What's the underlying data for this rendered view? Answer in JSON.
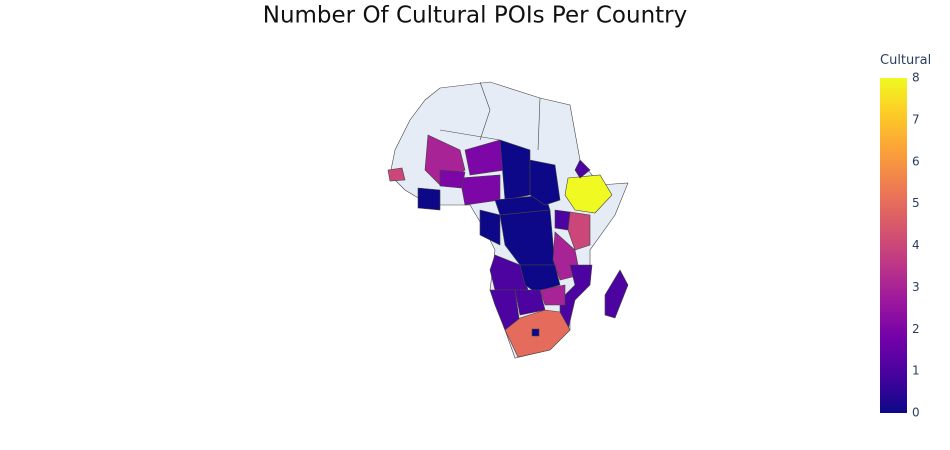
{
  "chart_data": {
    "type": "choropleth",
    "title": "Number Of Cultural POIs Per Country",
    "values": [
      3,
      4,
      2,
      2,
      0,
      0,
      0,
      0,
      0,
      0,
      8,
      1,
      4,
      1,
      3,
      1,
      0,
      1,
      3,
      1,
      1,
      5,
      1,
      0,
      2
    ],
    "colorscale": [
      "#0d0887",
      "#46039f",
      "#7201a8",
      "#9c179e",
      "#bd3786",
      "#d8576b",
      "#ed7953",
      "#fb9f3a",
      "#fdca26",
      "#f0f921"
    ],
    "missing_color": "#e5ecf6",
    "colorbar": {
      "title": "Cultural",
      "range": [
        0,
        8
      ],
      "ticks": [
        0,
        1,
        2,
        3,
        4,
        5,
        6,
        7,
        8
      ]
    }
  }
}
